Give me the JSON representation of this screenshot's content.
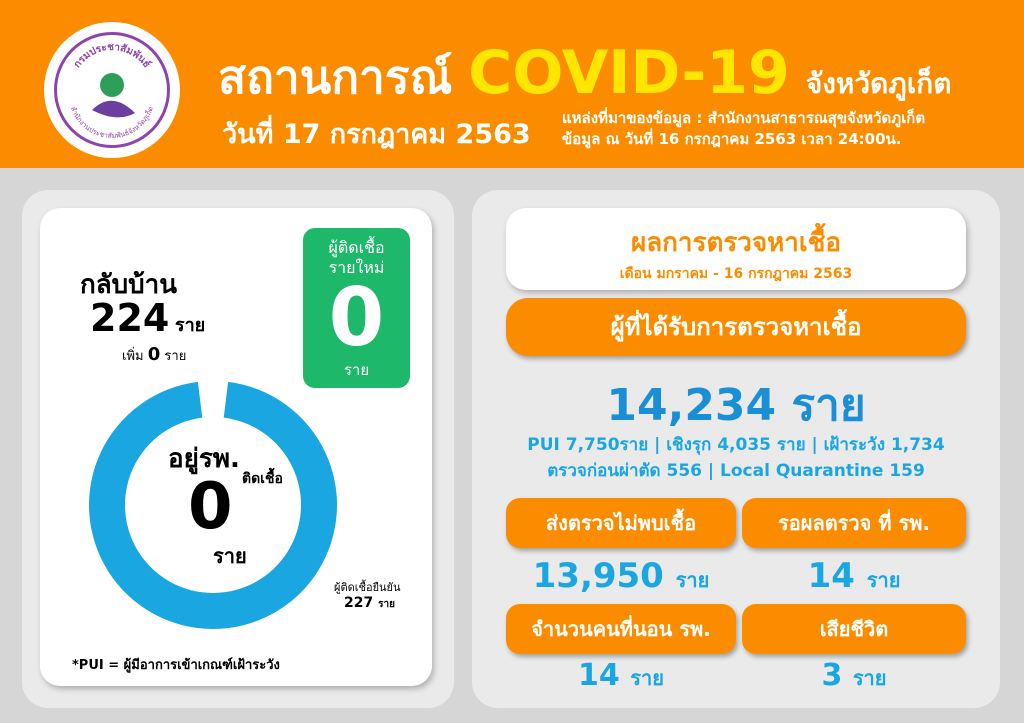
{
  "header": {
    "logo_top_text": "กรมประชาสัมพันธ์",
    "logo_bottom_text": "สำนักงานประชาสัมพันธ์จังหวัดภูเก็ต",
    "title_prefix": "สถานการณ์",
    "title_main": "COVID-19",
    "title_suffix": "จังหวัดภูเก็ต",
    "date": "วันที่ 17 กรกฎาคม 2563",
    "source_line1": "แหล่งที่มาของข้อมูล : สำนักงานสาธารณสุขจังหวัดภูเก็ต",
    "source_line2": "ข้อมูล ณ วันที่ 16 กรกฎาคม 2563 เวลา 24:00น."
  },
  "left": {
    "home_label": "กลับบ้าน",
    "home_value": "224",
    "home_unit": "ราย",
    "home_added": "เพิ่ม",
    "home_added_value": "0",
    "home_added_unit": "ราย",
    "new_label_1": "ผู้ติดเชื้อ",
    "new_label_2": "รายใหม่",
    "new_value": "0",
    "new_unit": "ราย",
    "hospital_label": "อยู่รพ.",
    "hospital_sub": "ติดเชื้อ",
    "hospital_value": "0",
    "hospital_unit": "ราย",
    "confirmed_label": "ผู้ติดเชื้อยืนยัน",
    "confirmed_value": "227",
    "confirmed_unit": "ราย",
    "footnote": "*PUI = ผู้มีอาการเข้าเกณฑ์เฝ้าระวัง",
    "donut_color": "#1aa6e0",
    "donut": {
      "home": 224,
      "hospital": 0,
      "confirmed": 227
    }
  },
  "right": {
    "title": "ผลการตรวจหาเชื้อ",
    "subtitle": "เดือน มกราคม - 16 กรกฎาคม 2563",
    "tested_label": "ผู้ที่ได้รับการตรวจหาเชื้อ",
    "tested_value": "14,234",
    "tested_unit": "ราย",
    "breakdown_1": "PUI 7,750ราย  | เชิงรุก 4,035 ราย | เฝ้าระวัง 1,734",
    "breakdown_2": "ตรวจก่อนผ่าตัด 556 | Local Quarantine 159",
    "negative_label": "ส่งตรวจไม่พบเชื้อ",
    "negative_value": "13,950",
    "negative_unit": "ราย",
    "pending_label": "รอผลตรวจ ที่ รพ.",
    "pending_value": "14",
    "pending_unit": "ราย",
    "admitted_label": "จำนวนคนที่นอน รพ.",
    "admitted_value": "14",
    "admitted_unit": "ราย",
    "death_label": "เสียชีวิต",
    "death_value": "3",
    "death_unit": "ราย"
  },
  "colors": {
    "orange": "#fb8c00",
    "yellow": "#ffe600",
    "green": "#1db86a",
    "blue": "#1aa6e0"
  }
}
